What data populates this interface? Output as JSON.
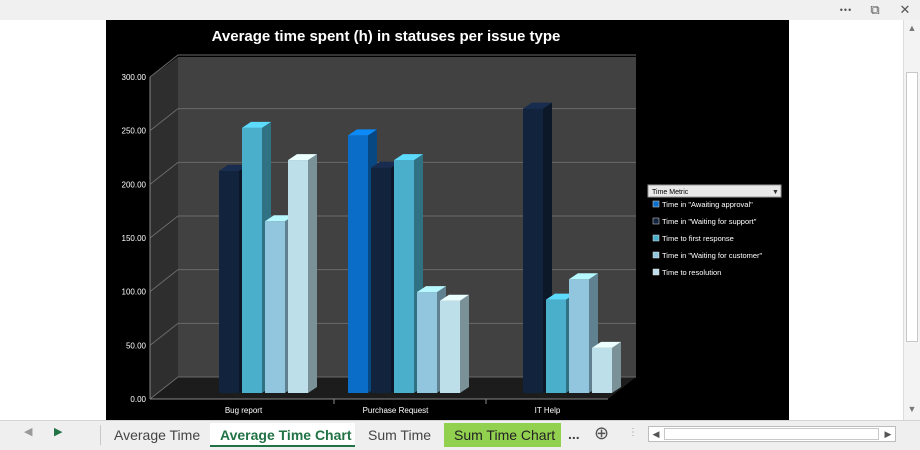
{
  "window": {
    "more_label": "•••",
    "restore_label": "⧉",
    "close_label": "✕"
  },
  "sheet_tabs": [
    {
      "label": "Average Time"
    },
    {
      "label": "Average Time Chart"
    },
    {
      "label": "Sum Time"
    },
    {
      "label": "Sum Time Chart"
    }
  ],
  "tab_more_label": "...",
  "add_sheet_label": "⊕",
  "nav": {
    "prev": "◀",
    "next": "▶"
  },
  "colors": {
    "background": "#000000",
    "plot_back_wall": "#414141",
    "plot_side_wall": "#2e2e2e",
    "floor": "#1c1c1c",
    "gridline": "#6a6a6a",
    "text": "#ffffff"
  },
  "chart_data": {
    "type": "bar",
    "style": "3d-clustered-column",
    "title": "Average time spent (h) in statuses per issue type",
    "xlabel": "",
    "ylabel": "",
    "ylim": [
      0,
      300
    ],
    "yticks": [
      "0.00",
      "50.00",
      "100.00",
      "150.00",
      "200.00",
      "250.00",
      "300.00"
    ],
    "grid": true,
    "legend_position": "right",
    "legend_title": "Time Metric",
    "categories": [
      "Bug report",
      "Purchase Request",
      "IT Help"
    ],
    "series": [
      {
        "name": "Time in \"Awaiting approval\"",
        "color": "#0a6ec8",
        "values": [
          null,
          240,
          null
        ]
      },
      {
        "name": "Time in \"Waiting for support\"",
        "color": "#12233e",
        "values": [
          207,
          210,
          265
        ]
      },
      {
        "name": "Time to first response",
        "color": "#4aafca",
        "values": [
          247,
          217,
          87
        ]
      },
      {
        "name": "Time in \"Waiting for customer\"",
        "color": "#92c6de",
        "values": [
          160,
          94,
          106
        ]
      },
      {
        "name": "Time to resolution",
        "color": "#bcdfea",
        "values": [
          217,
          86,
          42
        ]
      }
    ]
  }
}
